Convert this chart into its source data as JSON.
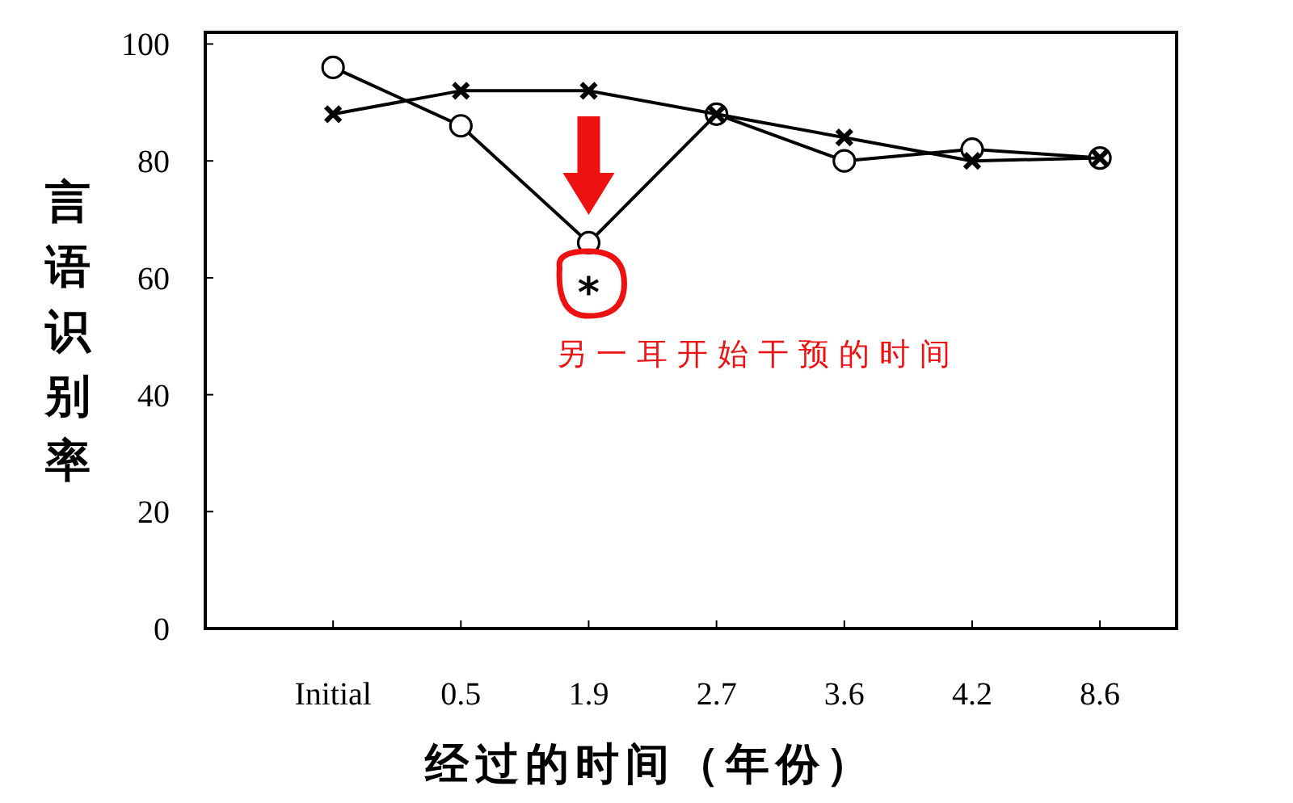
{
  "chart_data": {
    "type": "line",
    "xlabel": "经过的时间（年份）",
    "ylabel": "言语识别率",
    "categories": [
      "Initial",
      "0.5",
      "1.9",
      "2.7",
      "3.6",
      "4.2",
      "8.6"
    ],
    "series": [
      {
        "color": "#000000",
        "marker": "circle",
        "values": [
          96,
          86,
          66,
          88,
          80,
          82,
          80.5
        ]
      },
      {
        "color": "#000000",
        "marker": "cross",
        "values": [
          88,
          92,
          92,
          88,
          84,
          80,
          80.5
        ]
      }
    ],
    "ylim": [
      0,
      102
    ],
    "yticks": [
      0,
      20,
      40,
      60,
      80,
      100
    ],
    "grid": false,
    "line_style": "solid",
    "annotations": [
      {
        "text": "*",
        "x": "1.9",
        "y": 59
      },
      "另一耳开始干预的时间"
    ]
  }
}
